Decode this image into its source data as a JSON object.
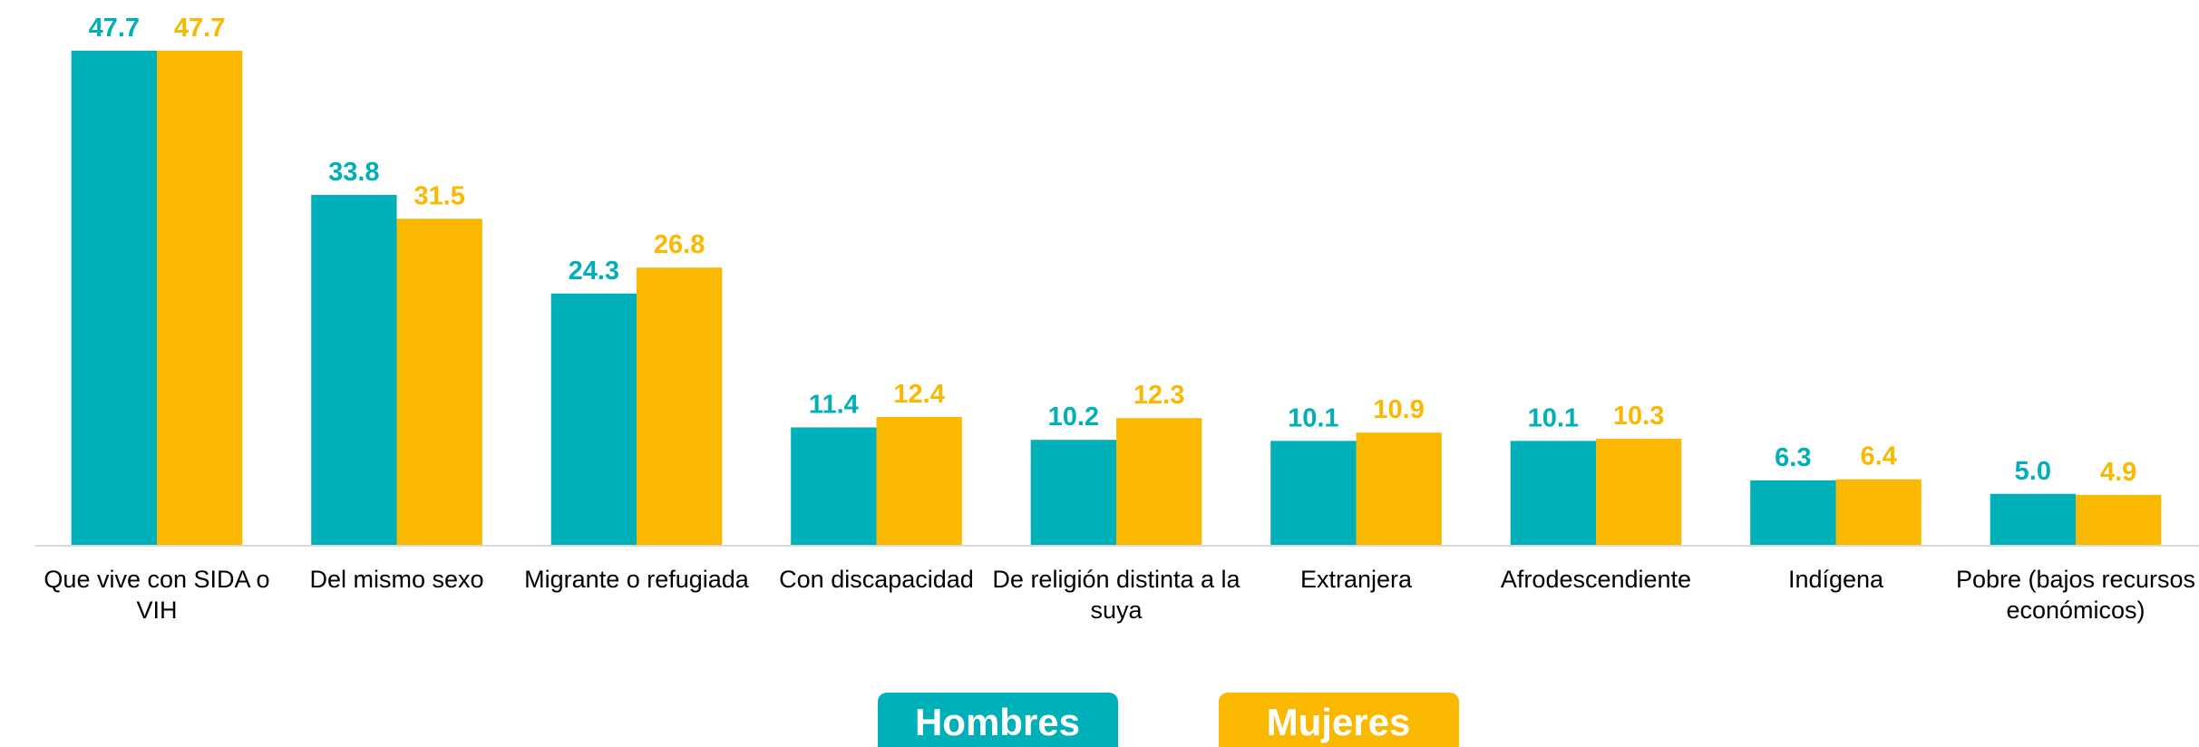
{
  "chart_data": {
    "type": "bar",
    "categories": [
      "Que vive con SIDA o VIH",
      "Del mismo sexo",
      "Migrante o refugiada",
      "Con discapacidad",
      "De religión distinta a la suya",
      "Extranjera",
      "Afrodescendiente",
      "Indígena",
      "Pobre (bajos recursos económicos)"
    ],
    "series": [
      {
        "name": "Hombres",
        "color": "#00b0b9",
        "values": [
          47.7,
          33.8,
          24.3,
          11.4,
          10.2,
          10.1,
          10.1,
          6.3,
          5.0
        ],
        "value_labels": [
          "47.7",
          "33.8",
          "24.3",
          "11.4",
          "10.2",
          "10.1",
          "10.1",
          "6.3",
          "5.0"
        ]
      },
      {
        "name": "Mujeres",
        "color": "#fbb800",
        "values": [
          47.7,
          31.5,
          26.8,
          12.4,
          12.3,
          10.9,
          10.3,
          6.4,
          4.9
        ],
        "value_labels": [
          "47.7",
          "31.5",
          "26.8",
          "12.4",
          "12.3",
          "10.9",
          "10.3",
          "6.4",
          "4.9"
        ]
      }
    ],
    "legend": "bottom"
  }
}
